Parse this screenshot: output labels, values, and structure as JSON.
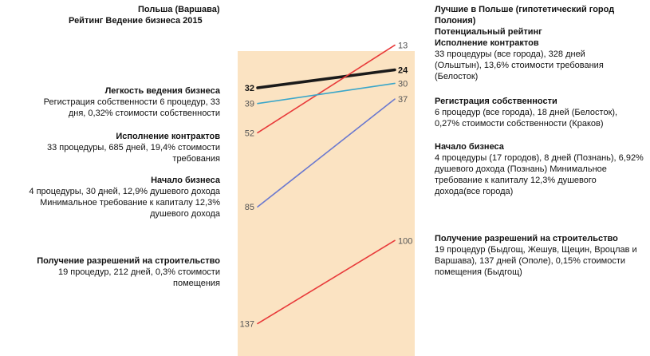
{
  "header": {
    "title": "Польша (Варшава)",
    "subtitle": "Рейтинг Ведение бизнеса 2015"
  },
  "right_header": {
    "title": "Лучшие в Польше (гипотетический город Полония)",
    "subtitle": "Потенциальный рейтинг",
    "contracts_title": "Исполнение контрактов",
    "contracts_desc": "33 процедуры (все города), 328 дней (Ольштын), 13,6% стоимости требования (Белосток)"
  },
  "left_blocks": {
    "ease_title": "Легкость ведения бизнеса",
    "ease_desc": "Регистрация собственности 6 процедур, 33 дня, 0,32% стоимости собственности",
    "contracts_title": "Исполнение контрактов",
    "contracts_desc": "33 процедуры, 685 дней, 19,4% стоимости требования",
    "start_title": "Начало бизнеса",
    "start_desc": "4 процедуры, 30 дней, 12,9% душевого дохода Минимальное требование к капиталу 12,3% душевого дохода",
    "permits_title": "Получение разрешений на строительство",
    "permits_desc": "19 процедур, 212 дней, 0,3% стоимости помещения"
  },
  "right_blocks": {
    "property_title": "Регистрация собственности",
    "property_desc": "6 процедур (все города), 18 дней (Белосток), 0,27% стоимости собственности (Краков)",
    "start_title": "Начало бизнеса",
    "start_desc": "4 процедуры (17 городов), 8 дней (Познань), 6,92% душевого дохода (Познань) Минимальное требование к капиталу 12,3% душевого дохода(все города)",
    "permits_title": "Получение разрешений на строительство",
    "permits_desc": "19 процедур (Быдгощ, Жешув, Щецин, Вроцлав и Варшава), 137 дней (Ополе), 0,15% стоимости помещения (Быдгощ)"
  },
  "colors": {
    "panel": "#fbe3c2",
    "ease": "#1a1a1a",
    "contracts": "#e83a3a",
    "property": "#3aa6c9",
    "start": "#6a78cf",
    "permits": "#e83a3a",
    "label": "#555555"
  },
  "chart_data": {
    "type": "slope",
    "categories": [
      "Польша (Варшава)",
      "Потенциальный рейтинг"
    ],
    "ylim": [
      0,
      150
    ],
    "y_inverted": true,
    "series": [
      {
        "name": "Легкость ведения бизнеса",
        "values": [
          32,
          24
        ],
        "color_key": "ease",
        "bold": true
      },
      {
        "name": "Исполнение контрактов",
        "values": [
          52,
          13
        ],
        "color_key": "contracts"
      },
      {
        "name": "Регистрация собственности",
        "values": [
          39,
          30
        ],
        "color_key": "property"
      },
      {
        "name": "Начало бизнеса",
        "values": [
          85,
          37
        ],
        "color_key": "start"
      },
      {
        "name": "Получение разрешений на строительство",
        "values": [
          137,
          100
        ],
        "color_key": "permits"
      }
    ]
  }
}
